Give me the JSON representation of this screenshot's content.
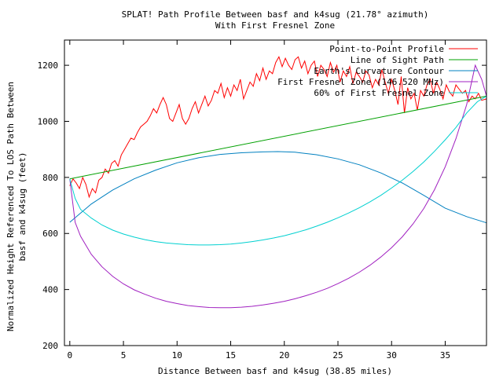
{
  "chart_data": {
    "type": "line",
    "title": "SPLAT! Path Profile Between basf and k4sug (21.78° azimuth)",
    "subtitle": "With First Fresnel Zone",
    "xlabel": "Distance Between basf and k4sug (38.85 miles)",
    "ylabel_line1": "Normalized Height Referenced To LOS Path Between",
    "ylabel_line2": "basf and k4sug (feet)",
    "xlim": [
      -0.5,
      38.85
    ],
    "ylim": [
      200,
      1290
    ],
    "x_ticks": [
      0,
      5,
      10,
      15,
      20,
      25,
      30,
      35
    ],
    "y_ticks": [
      200,
      400,
      600,
      800,
      1000,
      1200
    ],
    "grid": false,
    "legend_position": "top-right",
    "series": [
      {
        "name": "Point-to-Point Profile",
        "color": "#ff0000",
        "x": [
          0,
          0.3,
          0.6,
          0.9,
          1.2,
          1.5,
          1.8,
          2.1,
          2.4,
          2.7,
          3.0,
          3.3,
          3.6,
          3.9,
          4.2,
          4.5,
          4.8,
          5.1,
          5.4,
          5.7,
          6.0,
          6.3,
          6.6,
          6.9,
          7.2,
          7.5,
          7.8,
          8.1,
          8.4,
          8.7,
          9.0,
          9.3,
          9.6,
          9.9,
          10.2,
          10.5,
          10.8,
          11.1,
          11.4,
          11.7,
          12.0,
          12.3,
          12.6,
          12.9,
          13.2,
          13.5,
          13.8,
          14.1,
          14.4,
          14.7,
          15.0,
          15.3,
          15.6,
          15.9,
          16.2,
          16.5,
          16.8,
          17.1,
          17.4,
          17.7,
          18.0,
          18.3,
          18.6,
          18.9,
          19.2,
          19.5,
          19.8,
          20.1,
          20.4,
          20.7,
          21.0,
          21.3,
          21.6,
          21.9,
          22.2,
          22.5,
          22.8,
          23.1,
          23.4,
          23.7,
          24.0,
          24.3,
          24.6,
          24.9,
          25.2,
          25.5,
          25.8,
          26.1,
          26.4,
          26.7,
          27.0,
          27.3,
          27.6,
          27.9,
          28.2,
          28.5,
          28.8,
          29.1,
          29.4,
          29.7,
          30.0,
          30.3,
          30.6,
          30.9,
          31.2,
          31.5,
          31.8,
          32.1,
          32.4,
          32.7,
          33.0,
          33.3,
          33.6,
          33.9,
          34.2,
          34.5,
          34.8,
          35.1,
          35.4,
          35.7,
          36.0,
          36.3,
          36.6,
          36.9,
          37.2,
          37.5,
          37.8,
          38.1,
          38.4,
          38.85
        ],
        "y": [
          770,
          795,
          780,
          760,
          800,
          775,
          730,
          760,
          745,
          790,
          800,
          830,
          815,
          850,
          860,
          840,
          880,
          900,
          920,
          940,
          935,
          960,
          980,
          990,
          1000,
          1020,
          1045,
          1030,
          1060,
          1085,
          1060,
          1010,
          1000,
          1030,
          1060,
          1010,
          990,
          1010,
          1045,
          1070,
          1030,
          1060,
          1090,
          1055,
          1075,
          1110,
          1100,
          1135,
          1085,
          1120,
          1090,
          1130,
          1110,
          1150,
          1080,
          1110,
          1140,
          1125,
          1170,
          1145,
          1190,
          1150,
          1180,
          1170,
          1210,
          1230,
          1195,
          1225,
          1200,
          1185,
          1220,
          1230,
          1190,
          1215,
          1170,
          1200,
          1215,
          1160,
          1200,
          1185,
          1160,
          1210,
          1175,
          1200,
          1140,
          1180,
          1160,
          1195,
          1135,
          1175,
          1160,
          1140,
          1180,
          1165,
          1120,
          1150,
          1130,
          1185,
          1140,
          1100,
          1150,
          1110,
          1060,
          1160,
          1030,
          1120,
          1080,
          1100,
          1040,
          1110,
          1090,
          1130,
          1150,
          1100,
          1140,
          1115,
          1080,
          1130,
          1105,
          1090,
          1130,
          1115,
          1100,
          1110,
          1070,
          1090,
          1080,
          1100,
          1075,
          1080
        ]
      },
      {
        "name": "Line of Sight Path",
        "color": "#00a000",
        "x": [
          0,
          38.85
        ],
        "y": [
          795,
          1090
        ]
      },
      {
        "name": "Earth's Curvature Contour",
        "color": "#0080c0",
        "x": [
          0,
          2,
          4,
          6,
          8,
          10,
          12,
          14,
          16,
          18,
          19.4,
          21,
          23,
          25,
          27,
          29,
          31,
          33,
          35,
          37,
          38.85
        ],
        "y": [
          640,
          705,
          755,
          795,
          826,
          852,
          870,
          882,
          888,
          891,
          892,
          890,
          881,
          866,
          845,
          816,
          780,
          736,
          690,
          660,
          638
        ]
      },
      {
        "name": "First Fresnel Zone (146.520 MHz)",
        "color": "#a020c0",
        "x": [
          0,
          0.5,
          1,
          2,
          3,
          4,
          5,
          6,
          7,
          8,
          9,
          10,
          11,
          12,
          13,
          14,
          15,
          16,
          17,
          18,
          19,
          20,
          21,
          22,
          23,
          24,
          25,
          26,
          27,
          28,
          29,
          30,
          31,
          32,
          33,
          34,
          35,
          36,
          37,
          37.8,
          38.4,
          38.85
        ],
        "y": [
          795,
          640,
          590,
          526,
          481,
          447,
          420,
          399,
          383,
          369,
          358,
          350,
          343,
          339,
          336,
          335,
          335,
          337,
          340,
          345,
          351,
          358,
          367,
          378,
          390,
          404,
          421,
          440,
          462,
          487,
          516,
          549,
          588,
          634,
          689,
          756,
          838,
          938,
          1060,
          1200,
          1150,
          1090
        ]
      },
      {
        "name": "60% of First Fresnel Zone",
        "color": "#00d0d0",
        "x": [
          0,
          0.5,
          1,
          2,
          3,
          4,
          5,
          6,
          7,
          8,
          9,
          10,
          11,
          12,
          13,
          14,
          15,
          16,
          17,
          18,
          19,
          20,
          21,
          22,
          23,
          24,
          25,
          26,
          27,
          28,
          29,
          30,
          31,
          32,
          33,
          34,
          35,
          36,
          37,
          38,
          38.85
        ],
        "y": [
          795,
          725,
          686,
          655,
          630,
          612,
          598,
          587,
          578,
          571,
          566,
          563,
          560,
          559,
          559,
          560,
          562,
          566,
          571,
          577,
          584,
          592,
          602,
          613,
          626,
          640,
          656,
          673,
          692,
          713,
          736,
          762,
          790,
          821,
          855,
          893,
          934,
          978,
          1030,
          1070,
          1090
        ]
      }
    ]
  }
}
